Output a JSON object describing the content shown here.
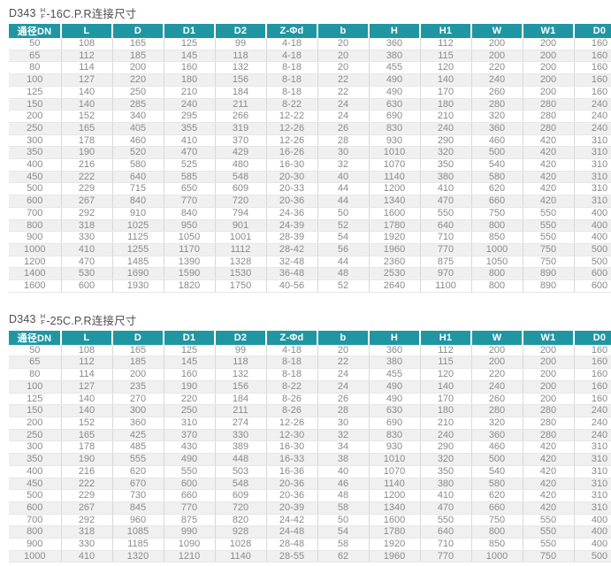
{
  "accent_color": "#2196a3",
  "tables": [
    {
      "title": {
        "prefix": "D343",
        "frac_top": "H",
        "frac_bottom": "F",
        "suffix": "-16C.P.R连接尺寸"
      },
      "columns": [
        "通径DN",
        "L",
        "D",
        "D1",
        "D2",
        "Z-Φd",
        "b",
        "H",
        "H1",
        "W",
        "W1",
        "D0"
      ],
      "rows": [
        [
          "50",
          "108",
          "165",
          "125",
          "99",
          "4-18",
          "20",
          "360",
          "112",
          "200",
          "200",
          "160"
        ],
        [
          "65",
          "112",
          "185",
          "145",
          "118",
          "4-18",
          "20",
          "380",
          "115",
          "200",
          "200",
          "160"
        ],
        [
          "80",
          "114",
          "200",
          "160",
          "132",
          "8-18",
          "20",
          "455",
          "120",
          "220",
          "200",
          "160"
        ],
        [
          "100",
          "127",
          "220",
          "180",
          "156",
          "8-18",
          "22",
          "490",
          "140",
          "240",
          "200",
          "160"
        ],
        [
          "125",
          "140",
          "250",
          "210",
          "184",
          "8-18",
          "22",
          "490",
          "170",
          "260",
          "200",
          "160"
        ],
        [
          "150",
          "140",
          "285",
          "240",
          "211",
          "8-22",
          "24",
          "630",
          "180",
          "280",
          "280",
          "240"
        ],
        [
          "200",
          "152",
          "340",
          "295",
          "266",
          "12-22",
          "24",
          "690",
          "210",
          "320",
          "280",
          "240"
        ],
        [
          "250",
          "165",
          "405",
          "355",
          "319",
          "12-26",
          "26",
          "830",
          "240",
          "360",
          "280",
          "240"
        ],
        [
          "300",
          "178",
          "460",
          "410",
          "370",
          "12-26",
          "28",
          "930",
          "290",
          "460",
          "420",
          "310"
        ],
        [
          "350",
          "190",
          "520",
          "470",
          "429",
          "16-26",
          "30",
          "1010",
          "320",
          "500",
          "420",
          "310"
        ],
        [
          "400",
          "216",
          "580",
          "525",
          "480",
          "16-30",
          "32",
          "1070",
          "350",
          "540",
          "420",
          "310"
        ],
        [
          "450",
          "222",
          "640",
          "585",
          "548",
          "20-30",
          "40",
          "1140",
          "380",
          "580",
          "420",
          "310"
        ],
        [
          "500",
          "229",
          "715",
          "650",
          "609",
          "20-33",
          "44",
          "1200",
          "410",
          "620",
          "420",
          "310"
        ],
        [
          "600",
          "267",
          "840",
          "770",
          "720",
          "20-36",
          "44",
          "1340",
          "470",
          "660",
          "420",
          "310"
        ],
        [
          "700",
          "292",
          "910",
          "840",
          "794",
          "24-36",
          "50",
          "1600",
          "550",
          "750",
          "550",
          "400"
        ],
        [
          "800",
          "318",
          "1025",
          "950",
          "901",
          "24-39",
          "52",
          "1780",
          "640",
          "800",
          "550",
          "400"
        ],
        [
          "900",
          "330",
          "1125",
          "1050",
          "1001",
          "28-39",
          "54",
          "1920",
          "710",
          "850",
          "550",
          "400"
        ],
        [
          "1000",
          "410",
          "1255",
          "1170",
          "1112",
          "28-42",
          "56",
          "1960",
          "770",
          "1000",
          "750",
          "500"
        ],
        [
          "1200",
          "470",
          "1485",
          "1390",
          "1328",
          "32-48",
          "44",
          "2360",
          "875",
          "1050",
          "750",
          "500"
        ],
        [
          "1400",
          "530",
          "1690",
          "1590",
          "1530",
          "36-48",
          "48",
          "2530",
          "970",
          "800",
          "890",
          "600"
        ],
        [
          "1600",
          "600",
          "1930",
          "1820",
          "1750",
          "40-56",
          "52",
          "2640",
          "1100",
          "800",
          "890",
          "600"
        ]
      ]
    },
    {
      "title": {
        "prefix": "D343",
        "frac_top": "H",
        "frac_bottom": "F",
        "suffix": "-25C.P.R连接尺寸"
      },
      "columns": [
        "通径DN",
        "L",
        "D",
        "D1",
        "D2",
        "Z-Φd",
        "b",
        "H",
        "H1",
        "W",
        "W1",
        "D0"
      ],
      "rows": [
        [
          "50",
          "108",
          "165",
          "125",
          "99",
          "4-18",
          "20",
          "360",
          "112",
          "200",
          "200",
          "160"
        ],
        [
          "65",
          "112",
          "185",
          "145",
          "118",
          "8-18",
          "22",
          "380",
          "115",
          "200",
          "200",
          "160"
        ],
        [
          "80",
          "114",
          "200",
          "160",
          "132",
          "8-18",
          "24",
          "455",
          "120",
          "220",
          "200",
          "160"
        ],
        [
          "100",
          "127",
          "235",
          "190",
          "156",
          "8-22",
          "24",
          "490",
          "140",
          "240",
          "200",
          "160"
        ],
        [
          "125",
          "140",
          "270",
          "220",
          "184",
          "8-26",
          "26",
          "490",
          "170",
          "260",
          "200",
          "160"
        ],
        [
          "150",
          "140",
          "300",
          "250",
          "211",
          "8-26",
          "28",
          "630",
          "180",
          "280",
          "280",
          "240"
        ],
        [
          "200",
          "152",
          "360",
          "310",
          "274",
          "12-26",
          "30",
          "690",
          "210",
          "320",
          "280",
          "240"
        ],
        [
          "250",
          "165",
          "425",
          "370",
          "330",
          "12-30",
          "32",
          "830",
          "240",
          "360",
          "280",
          "240"
        ],
        [
          "300",
          "178",
          "485",
          "430",
          "389",
          "16-30",
          "34",
          "930",
          "290",
          "460",
          "420",
          "310"
        ],
        [
          "350",
          "190",
          "555",
          "490",
          "448",
          "16-33",
          "38",
          "1010",
          "320",
          "500",
          "420",
          "310"
        ],
        [
          "400",
          "216",
          "620",
          "550",
          "503",
          "16-36",
          "40",
          "1070",
          "350",
          "540",
          "420",
          "310"
        ],
        [
          "450",
          "222",
          "670",
          "600",
          "548",
          "20-36",
          "46",
          "1140",
          "380",
          "580",
          "420",
          "310"
        ],
        [
          "500",
          "229",
          "730",
          "660",
          "609",
          "20-36",
          "48",
          "1200",
          "410",
          "620",
          "420",
          "310"
        ],
        [
          "600",
          "267",
          "845",
          "770",
          "720",
          "20-39",
          "58",
          "1340",
          "470",
          "660",
          "420",
          "310"
        ],
        [
          "700",
          "292",
          "960",
          "875",
          "820",
          "24-42",
          "50",
          "1600",
          "550",
          "750",
          "550",
          "400"
        ],
        [
          "800",
          "318",
          "1085",
          "990",
          "928",
          "24-48",
          "54",
          "1780",
          "640",
          "800",
          "550",
          "400"
        ],
        [
          "900",
          "330",
          "1185",
          "1090",
          "1028",
          "28-48",
          "58",
          "1920",
          "710",
          "850",
          "550",
          "400"
        ],
        [
          "1000",
          "410",
          "1320",
          "1210",
          "1140",
          "28-55",
          "62",
          "1960",
          "770",
          "1000",
          "750",
          "500"
        ]
      ]
    }
  ]
}
